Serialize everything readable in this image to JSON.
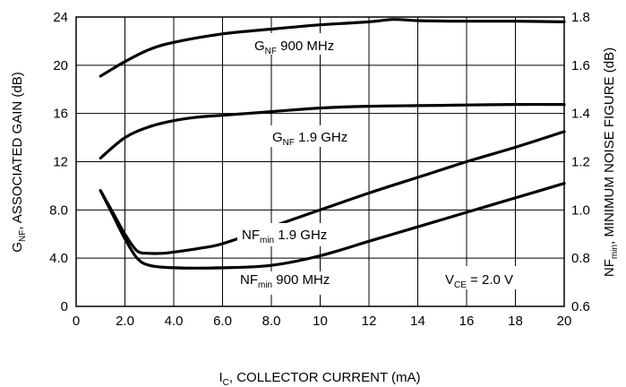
{
  "chart_data": {
    "type": "line",
    "xlabel": {
      "main": "I",
      "sub": "C",
      "rest": ", COLLECTOR CURRENT (mA)"
    },
    "ylabel_left": {
      "main": "G",
      "sub": "NF",
      "rest": ", ASSOCIATED GAIN (dB)"
    },
    "ylabel_right": {
      "main": "NF",
      "sub": "min",
      "rest": ", MINIMUM NOISE FIGURE (dB)"
    },
    "xlim": [
      0,
      20
    ],
    "ylim_left": [
      0,
      24
    ],
    "ylim_right": [
      0.6,
      1.8
    ],
    "x_ticks": [
      "0",
      "2.0",
      "4.0",
      "6.0",
      "8.0",
      "10",
      "12",
      "14",
      "16",
      "18",
      "20"
    ],
    "y_left_ticks": [
      "0",
      "4.0",
      "8.0",
      "12",
      "16",
      "20",
      "24"
    ],
    "y_right_ticks": [
      "0.6",
      "0.8",
      "1.0",
      "1.2",
      "1.4",
      "1.6",
      "1.8"
    ],
    "grid": true,
    "series": [
      {
        "name_main": "G",
        "name_sub": "NF",
        "name_rest": " 900 MHz",
        "axis": "left",
        "x": [
          1,
          2,
          3,
          4,
          6,
          8,
          10,
          12,
          13,
          14,
          16,
          18,
          20
        ],
        "y": [
          19.1,
          20.3,
          21.3,
          21.9,
          22.6,
          23.0,
          23.35,
          23.6,
          23.8,
          23.7,
          23.65,
          23.65,
          23.6
        ]
      },
      {
        "name_main": "G",
        "name_sub": "NF",
        "name_rest": " 1.9 GHz",
        "axis": "left",
        "x": [
          1,
          2,
          3,
          4,
          5,
          6,
          8,
          10,
          12,
          14,
          16,
          18,
          20
        ],
        "y": [
          12.3,
          14.0,
          14.9,
          15.4,
          15.7,
          15.85,
          16.15,
          16.45,
          16.6,
          16.65,
          16.7,
          16.75,
          16.75
        ]
      },
      {
        "name_main": "NF",
        "name_sub": "min",
        "name_rest": " 1.9 GHz",
        "axis": "right",
        "x": [
          1,
          1.5,
          2,
          2.5,
          3,
          3.5,
          4,
          5,
          6,
          8,
          10,
          12,
          14,
          16,
          18,
          20
        ],
        "y": [
          1.08,
          0.99,
          0.9,
          0.83,
          0.82,
          0.82,
          0.825,
          0.84,
          0.86,
          0.93,
          1.0,
          1.07,
          1.135,
          1.2,
          1.26,
          1.325
        ]
      },
      {
        "name_main": "NF",
        "name_sub": "min",
        "name_rest": " 900 MHz",
        "axis": "right",
        "x": [
          1,
          1.5,
          2,
          2.5,
          3,
          4,
          6,
          8,
          10,
          12,
          14,
          16,
          18,
          20
        ],
        "y": [
          1.08,
          0.98,
          0.88,
          0.8,
          0.77,
          0.76,
          0.76,
          0.77,
          0.81,
          0.87,
          0.93,
          0.99,
          1.05,
          1.11
        ]
      }
    ],
    "annotation": {
      "main": "V",
      "sub": "CE",
      "rest": " = 2.0 V"
    }
  }
}
